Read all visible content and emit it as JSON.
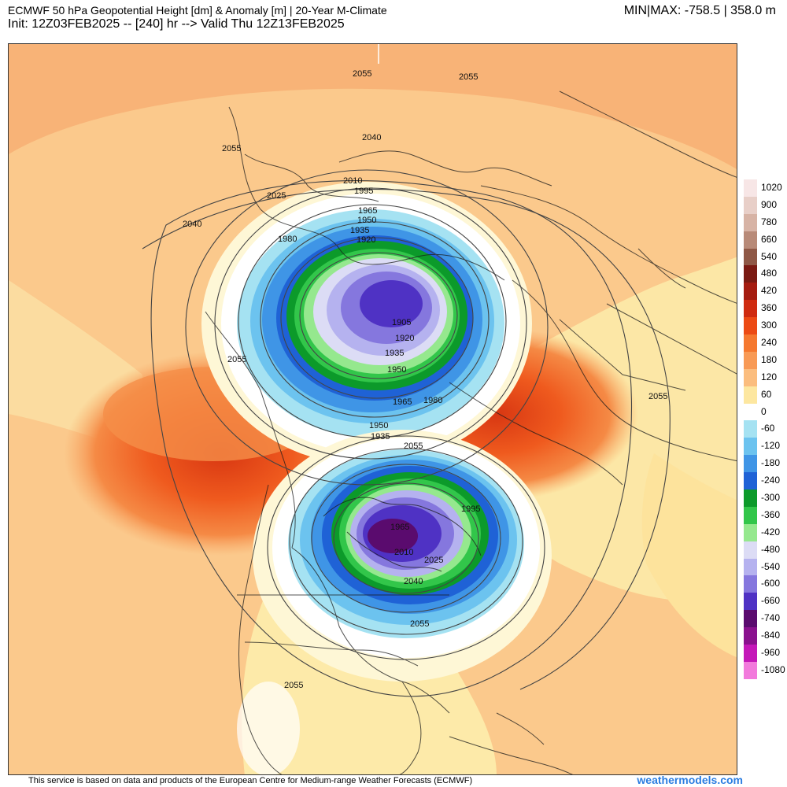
{
  "header": {
    "title": "ECMWF 50 hPa Geopotential Height [dm] & Anomaly [m] | 20-Year M-Climate",
    "subtitle": "Init: 12Z03FEB2025 -- [240] hr --> Valid Thu 12Z13FEB2025",
    "minmax": "MIN|MAX: -758.5 | 358.0 m"
  },
  "legend": [
    {
      "label": "1020",
      "color": "#f7e6e6"
    },
    {
      "label": "900",
      "color": "#e8cfc8"
    },
    {
      "label": "780",
      "color": "#d7b3a5"
    },
    {
      "label": "660",
      "color": "#b88a78"
    },
    {
      "label": "540",
      "color": "#8f5846"
    },
    {
      "label": "480",
      "color": "#7a1a12"
    },
    {
      "label": "420",
      "color": "#a51c10"
    },
    {
      "label": "360",
      "color": "#cf2b10"
    },
    {
      "label": "300",
      "color": "#ec4a14"
    },
    {
      "label": "240",
      "color": "#f5782f"
    },
    {
      "label": "180",
      "color": "#f89a55"
    },
    {
      "label": "120",
      "color": "#fbbd7e"
    },
    {
      "label": "60",
      "color": "#fde7a0"
    },
    {
      "label": "0",
      "color": "#ffffff"
    },
    {
      "label": "-60",
      "color": "#a5e2f2"
    },
    {
      "label": "-120",
      "color": "#6cc3ef"
    },
    {
      "label": "-180",
      "color": "#3f95e6"
    },
    {
      "label": "-240",
      "color": "#1f62d6"
    },
    {
      "label": "-300",
      "color": "#0c9a2a"
    },
    {
      "label": "-360",
      "color": "#32c64a"
    },
    {
      "label": "-420",
      "color": "#95e88e"
    },
    {
      "label": "-480",
      "color": "#dcdcf5"
    },
    {
      "label": "-540",
      "color": "#b5b2ef"
    },
    {
      "label": "-600",
      "color": "#8577de"
    },
    {
      "label": "-660",
      "color": "#4f32c4"
    },
    {
      "label": "-740",
      "color": "#5a0b6e"
    },
    {
      "label": "-840",
      "color": "#8a118e"
    },
    {
      "label": "-960",
      "color": "#c418b8"
    },
    {
      "label": "-1080",
      "color": "#f27adc"
    }
  ],
  "contour_labels": [
    "2055",
    "2055",
    "2040",
    "2055",
    "2010",
    "1995",
    "2025",
    "2040",
    "1965",
    "1950",
    "1935",
    "1920",
    "1980",
    "1905",
    "1920",
    "1935",
    "1950",
    "2055",
    "1965",
    "1980",
    "2055",
    "1950",
    "1935",
    "1995",
    "1965",
    "2055",
    "2010",
    "2025",
    "2040",
    "2055",
    "2055"
  ],
  "footer": {
    "note": "This service is based on data and products of the European Centre for Medium-range Weather Forecasts (ECMWF)",
    "brand": "weathermodels.com"
  }
}
